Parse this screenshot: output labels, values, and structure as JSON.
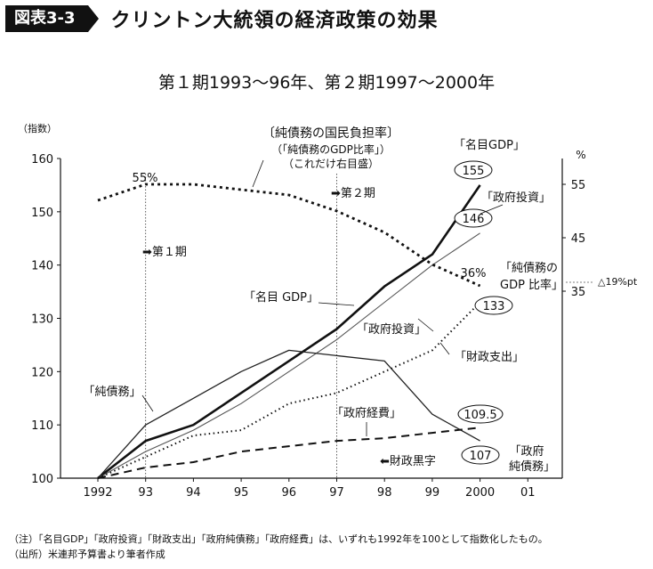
{
  "figure": {
    "badge": "図表3-3",
    "title": "クリントン大統領の経済政策の効果",
    "subtitle": "第１期1993〜96年、第２期1997〜2000年"
  },
  "chart_data": {
    "type": "line",
    "x": [
      "1992",
      "93",
      "94",
      "95",
      "96",
      "97",
      "98",
      "99",
      "2000",
      "01"
    ],
    "ylabel_left": "（指数）",
    "ylabel_right": "%",
    "ylim_left": [
      100,
      160
    ],
    "yticks_left": [
      100,
      110,
      120,
      130,
      140,
      150,
      160
    ],
    "ylim_right": [
      0,
      60
    ],
    "yticks_right": [
      35,
      45,
      55
    ],
    "series": [
      {
        "name": "「名目GDP」",
        "axis": "left",
        "style": "thick-solid",
        "values": [
          100,
          107,
          110,
          116,
          122,
          128,
          136,
          142,
          155,
          null
        ]
      },
      {
        "name": "「政府投資」",
        "axis": "left",
        "style": "thin-solid",
        "values": [
          100,
          105,
          109,
          114,
          120,
          126,
          133,
          140,
          146,
          null
        ]
      },
      {
        "name": "「純債務」",
        "axis": "left",
        "style": "solid",
        "values": [
          100,
          110,
          115,
          120,
          124,
          123,
          122,
          112,
          107,
          null
        ]
      },
      {
        "name": "「財政支出」",
        "axis": "left",
        "style": "dotted",
        "values": [
          100,
          104,
          108,
          109,
          114,
          116,
          120,
          124,
          133,
          null
        ]
      },
      {
        "name": "「政府経費」",
        "axis": "left",
        "style": "dashed",
        "values": [
          100,
          102,
          103,
          105,
          106,
          107,
          107.5,
          108.5,
          109.5,
          null
        ]
      },
      {
        "name": "「純債務のGDP比率」",
        "axis": "right",
        "style": "heavy-dotted",
        "values": [
          52,
          55,
          55,
          54,
          53,
          50,
          46,
          40,
          36,
          null
        ]
      }
    ],
    "period_markers": [
      {
        "x": "93",
        "label": "➡第１期"
      },
      {
        "x": "97",
        "label": "➡第２期"
      },
      {
        "x": "98",
        "label": "⬅財政黒字"
      }
    ],
    "value_labels": [
      {
        "text": "155",
        "circled": true
      },
      {
        "text": "146",
        "circled": true
      },
      {
        "text": "133",
        "circled": true
      },
      {
        "text": "109.5",
        "circled": true
      },
      {
        "text": "107",
        "circled": true
      },
      {
        "text": "55%",
        "circled": false
      },
      {
        "text": "36%",
        "circled": false
      }
    ],
    "annotations": {
      "ratio_header": "〔純債務の国民負担率〕",
      "ratio_sub1": "（「純債務のGDP比率」）",
      "ratio_sub2": "（これだけ右目盛）",
      "gdp_top": "「名目GDP」",
      "gov_inv_top": "「政府投資」",
      "ratio_label_1": "「純債務の",
      "ratio_label_2": "GDP 比率」",
      "delta": "△19%pt",
      "gdp_mid": "「名目 GDP」",
      "gov_inv_mid": "「政府投資」",
      "fiscal": "「財政支出」",
      "net_debt": "「純債務」",
      "gov_cost": "「政府経費」",
      "gov_debt_1": "「政府",
      "gov_debt_2": "純債務」"
    }
  },
  "notes": {
    "note": "（注）「名目GDP」「政府投資」「財政支出」「政府純債務」「政府経費」は、いずれも1992年を100として指数化したもの。",
    "source": "（出所）米連邦予算書より筆者作成"
  }
}
